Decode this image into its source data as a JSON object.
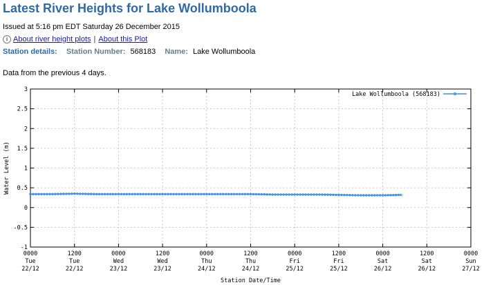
{
  "header": {
    "title": "Latest River Heights for Lake Wollumboola",
    "issued": "Issued at 5:16 pm EDT Saturday 26 December 2015"
  },
  "links": {
    "about_plots": "About river height plots",
    "separator": "|",
    "about_this": "About this Plot"
  },
  "station": {
    "details_label": "Station details:",
    "number_label": "Station Number:",
    "number_value": "568183",
    "name_label": "Name:",
    "name_value": "Lake Wollumboola"
  },
  "note": "Data from the previous 4 days.",
  "chart_data": {
    "type": "line",
    "title": "",
    "xlabel": "Station Date/Time",
    "ylabel": "Water Level (m)",
    "ylim": [
      -1,
      3
    ],
    "yticks": [
      "3",
      "2.5",
      "2",
      "1.5",
      "1",
      "0.5",
      "0",
      "-0.5",
      "-1"
    ],
    "xlim": [
      "2015-12-22 00:00",
      "2015-12-27 00:00"
    ],
    "xticks": [
      {
        "time": "0000",
        "day": "Tue",
        "date": "22/12"
      },
      {
        "time": "1200",
        "day": "Tue",
        "date": "22/12"
      },
      {
        "time": "0000",
        "day": "Wed",
        "date": "23/12"
      },
      {
        "time": "1200",
        "day": "Wed",
        "date": "23/12"
      },
      {
        "time": "0000",
        "day": "Thu",
        "date": "24/12"
      },
      {
        "time": "1200",
        "day": "Thu",
        "date": "24/12"
      },
      {
        "time": "0000",
        "day": "Fri",
        "date": "25/12"
      },
      {
        "time": "1200",
        "day": "Fri",
        "date": "25/12"
      },
      {
        "time": "0000",
        "day": "Sat",
        "date": "26/12"
      },
      {
        "time": "1200",
        "day": "Sat",
        "date": "26/12"
      },
      {
        "time": "0000",
        "day": "Sun",
        "date": "27/12"
      }
    ],
    "grid": true,
    "legend_position": "top-right",
    "series": [
      {
        "name": "Lake Wollumboola (568183)",
        "color": "#3a8ee6",
        "points": [
          {
            "x": "2015-12-22 00:00",
            "y": 0.34
          },
          {
            "x": "2015-12-22 06:00",
            "y": 0.34
          },
          {
            "x": "2015-12-22 12:00",
            "y": 0.35
          },
          {
            "x": "2015-12-22 18:00",
            "y": 0.34
          },
          {
            "x": "2015-12-23 00:00",
            "y": 0.34
          },
          {
            "x": "2015-12-23 06:00",
            "y": 0.34
          },
          {
            "x": "2015-12-23 12:00",
            "y": 0.34
          },
          {
            "x": "2015-12-23 18:00",
            "y": 0.34
          },
          {
            "x": "2015-12-24 00:00",
            "y": 0.34
          },
          {
            "x": "2015-12-24 06:00",
            "y": 0.34
          },
          {
            "x": "2015-12-24 12:00",
            "y": 0.34
          },
          {
            "x": "2015-12-24 18:00",
            "y": 0.33
          },
          {
            "x": "2015-12-25 00:00",
            "y": 0.33
          },
          {
            "x": "2015-12-25 06:00",
            "y": 0.33
          },
          {
            "x": "2015-12-25 12:00",
            "y": 0.32
          },
          {
            "x": "2015-12-25 18:00",
            "y": 0.31
          },
          {
            "x": "2015-12-26 00:00",
            "y": 0.31
          },
          {
            "x": "2015-12-26 05:00",
            "y": 0.32
          }
        ]
      }
    ]
  }
}
